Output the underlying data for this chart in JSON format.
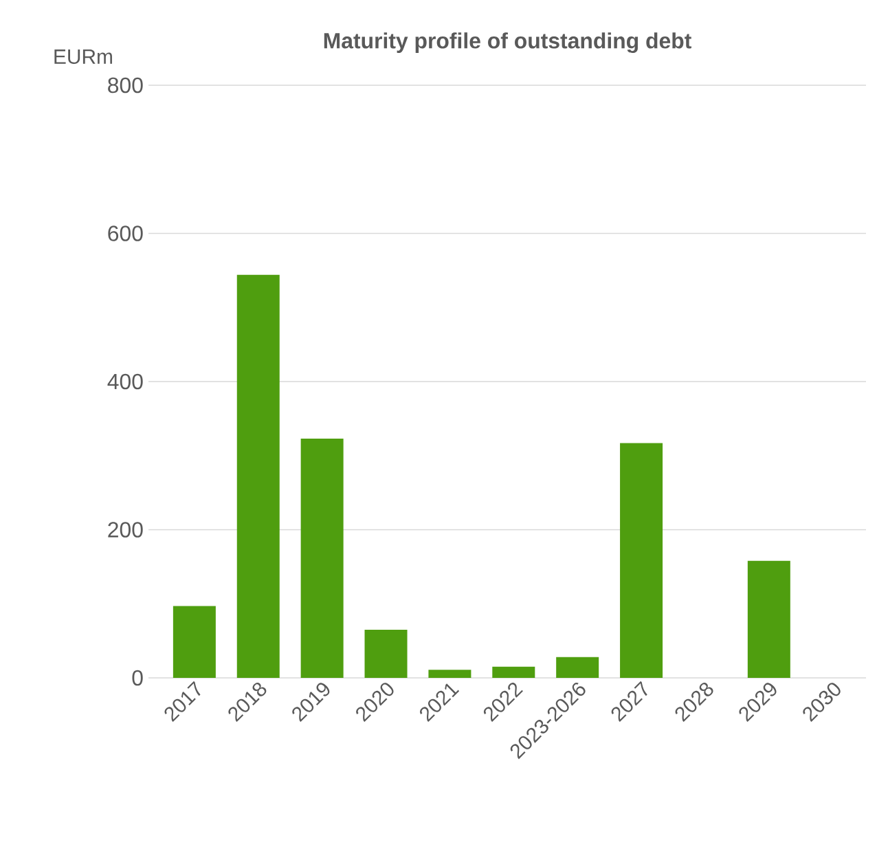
{
  "chart_data": {
    "type": "bar",
    "title": "Maturity profile of outstanding debt",
    "ylabel": "EURm",
    "categories": [
      "2017",
      "2018",
      "2019",
      "2020",
      "2021",
      "2022",
      "2023-2026",
      "2027",
      "2028",
      "2029",
      "2030"
    ],
    "values": [
      97,
      544,
      323,
      65,
      11,
      15,
      28,
      317,
      0,
      158,
      0
    ],
    "color": "#4f9e0f",
    "ylim": [
      0,
      800
    ],
    "yticks": [
      0,
      200,
      400,
      600,
      800
    ],
    "grid": "y"
  }
}
